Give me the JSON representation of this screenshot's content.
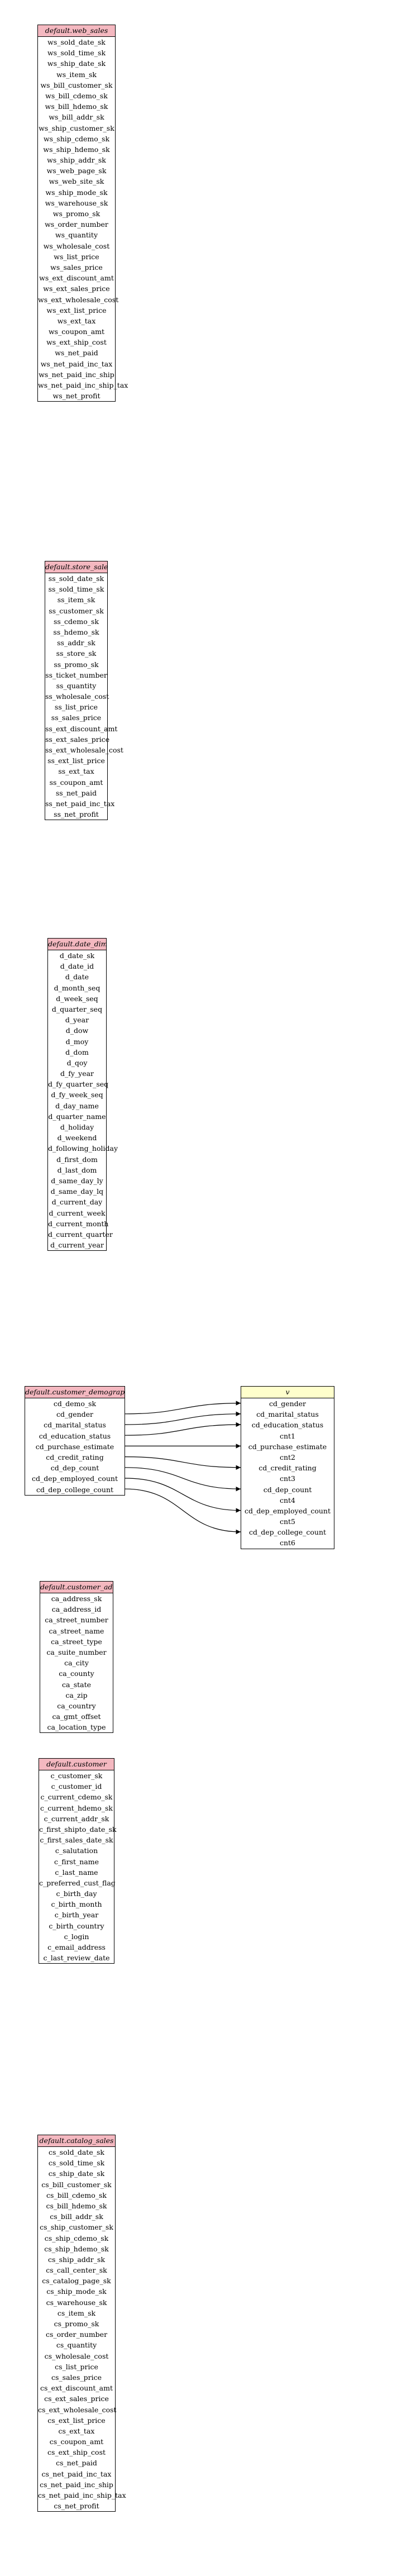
{
  "colors": {
    "table_header": "#f4b8c0",
    "view_header": "#ffffcc",
    "border": "#000000"
  },
  "tables": [
    {
      "id": "web_sales",
      "title": "default.web_sales",
      "kind": "table",
      "columns": [
        "ws_sold_date_sk",
        "ws_sold_time_sk",
        "ws_ship_date_sk",
        "ws_item_sk",
        "ws_bill_customer_sk",
        "ws_bill_cdemo_sk",
        "ws_bill_hdemo_sk",
        "ws_bill_addr_sk",
        "ws_ship_customer_sk",
        "ws_ship_cdemo_sk",
        "ws_ship_hdemo_sk",
        "ws_ship_addr_sk",
        "ws_web_page_sk",
        "ws_web_site_sk",
        "ws_ship_mode_sk",
        "ws_warehouse_sk",
        "ws_promo_sk",
        "ws_order_number",
        "ws_quantity",
        "ws_wholesale_cost",
        "ws_list_price",
        "ws_sales_price",
        "ws_ext_discount_amt",
        "ws_ext_sales_price",
        "ws_ext_wholesale_cost",
        "ws_ext_list_price",
        "ws_ext_tax",
        "ws_coupon_amt",
        "ws_ext_ship_cost",
        "ws_net_paid",
        "ws_net_paid_inc_tax",
        "ws_net_paid_inc_ship",
        "ws_net_paid_inc_ship_tax",
        "ws_net_profit"
      ]
    },
    {
      "id": "store_sales",
      "title": "default.store_sales",
      "kind": "table",
      "columns": [
        "ss_sold_date_sk",
        "ss_sold_time_sk",
        "ss_item_sk",
        "ss_customer_sk",
        "ss_cdemo_sk",
        "ss_hdemo_sk",
        "ss_addr_sk",
        "ss_store_sk",
        "ss_promo_sk",
        "ss_ticket_number",
        "ss_quantity",
        "ss_wholesale_cost",
        "ss_list_price",
        "ss_sales_price",
        "ss_ext_discount_amt",
        "ss_ext_sales_price",
        "ss_ext_wholesale_cost",
        "ss_ext_list_price",
        "ss_ext_tax",
        "ss_coupon_amt",
        "ss_net_paid",
        "ss_net_paid_inc_tax",
        "ss_net_profit"
      ]
    },
    {
      "id": "date_dim",
      "title": "default.date_dim",
      "kind": "table",
      "columns": [
        "d_date_sk",
        "d_date_id",
        "d_date",
        "d_month_seq",
        "d_week_seq",
        "d_quarter_seq",
        "d_year",
        "d_dow",
        "d_moy",
        "d_dom",
        "d_qoy",
        "d_fy_year",
        "d_fy_quarter_seq",
        "d_fy_week_seq",
        "d_day_name",
        "d_quarter_name",
        "d_holiday",
        "d_weekend",
        "d_following_holiday",
        "d_first_dom",
        "d_last_dom",
        "d_same_day_ly",
        "d_same_day_lq",
        "d_current_day",
        "d_current_week",
        "d_current_month",
        "d_current_quarter",
        "d_current_year"
      ]
    },
    {
      "id": "customer_demographics",
      "title": "default.customer_demographics",
      "kind": "table",
      "columns": [
        "cd_demo_sk",
        "cd_gender",
        "cd_marital_status",
        "cd_education_status",
        "cd_purchase_estimate",
        "cd_credit_rating",
        "cd_dep_count",
        "cd_dep_employed_count",
        "cd_dep_college_count"
      ]
    },
    {
      "id": "customer_address",
      "title": "default.customer_address",
      "kind": "table",
      "columns": [
        "ca_address_sk",
        "ca_address_id",
        "ca_street_number",
        "ca_street_name",
        "ca_street_type",
        "ca_suite_number",
        "ca_city",
        "ca_county",
        "ca_state",
        "ca_zip",
        "ca_country",
        "ca_gmt_offset",
        "ca_location_type"
      ]
    },
    {
      "id": "customer",
      "title": "default.customer",
      "kind": "table",
      "columns": [
        "c_customer_sk",
        "c_customer_id",
        "c_current_cdemo_sk",
        "c_current_hdemo_sk",
        "c_current_addr_sk",
        "c_first_shipto_date_sk",
        "c_first_sales_date_sk",
        "c_salutation",
        "c_first_name",
        "c_last_name",
        "c_preferred_cust_flag",
        "c_birth_day",
        "c_birth_month",
        "c_birth_year",
        "c_birth_country",
        "c_login",
        "c_email_address",
        "c_last_review_date"
      ]
    },
    {
      "id": "catalog_sales",
      "title": "default.catalog_sales",
      "kind": "table",
      "columns": [
        "cs_sold_date_sk",
        "cs_sold_time_sk",
        "cs_ship_date_sk",
        "cs_bill_customer_sk",
        "cs_bill_cdemo_sk",
        "cs_bill_hdemo_sk",
        "cs_bill_addr_sk",
        "cs_ship_customer_sk",
        "cs_ship_cdemo_sk",
        "cs_ship_hdemo_sk",
        "cs_ship_addr_sk",
        "cs_call_center_sk",
        "cs_catalog_page_sk",
        "cs_ship_mode_sk",
        "cs_warehouse_sk",
        "cs_item_sk",
        "cs_promo_sk",
        "cs_order_number",
        "cs_quantity",
        "cs_wholesale_cost",
        "cs_list_price",
        "cs_sales_price",
        "cs_ext_discount_amt",
        "cs_ext_sales_price",
        "cs_ext_wholesale_cost",
        "cs_ext_list_price",
        "cs_ext_tax",
        "cs_coupon_amt",
        "cs_ext_ship_cost",
        "cs_net_paid",
        "cs_net_paid_inc_tax",
        "cs_net_paid_inc_ship",
        "cs_net_paid_inc_ship_tax",
        "cs_net_profit"
      ]
    },
    {
      "id": "v",
      "title": "v",
      "kind": "view",
      "columns": [
        "cd_gender",
        "cd_marital_status",
        "cd_education_status",
        "cnt1",
        "cd_purchase_estimate",
        "cnt2",
        "cd_credit_rating",
        "cnt3",
        "cd_dep_count",
        "cnt4",
        "cd_dep_employed_count",
        "cnt5",
        "cd_dep_college_count",
        "cnt6"
      ]
    }
  ],
  "edges": [
    {
      "from_table": "customer_demographics",
      "from_col": "cd_gender",
      "to_table": "v",
      "to_col": "cd_gender"
    },
    {
      "from_table": "customer_demographics",
      "from_col": "cd_marital_status",
      "to_table": "v",
      "to_col": "cd_marital_status"
    },
    {
      "from_table": "customer_demographics",
      "from_col": "cd_education_status",
      "to_table": "v",
      "to_col": "cd_education_status"
    },
    {
      "from_table": "customer_demographics",
      "from_col": "cd_purchase_estimate",
      "to_table": "v",
      "to_col": "cd_purchase_estimate"
    },
    {
      "from_table": "customer_demographics",
      "from_col": "cd_credit_rating",
      "to_table": "v",
      "to_col": "cd_credit_rating"
    },
    {
      "from_table": "customer_demographics",
      "from_col": "cd_dep_count",
      "to_table": "v",
      "to_col": "cd_dep_count"
    },
    {
      "from_table": "customer_demographics",
      "from_col": "cd_dep_employed_count",
      "to_table": "v",
      "to_col": "cd_dep_employed_count"
    },
    {
      "from_table": "customer_demographics",
      "from_col": "cd_dep_college_count",
      "to_table": "v",
      "to_col": "cd_dep_college_count"
    }
  ]
}
